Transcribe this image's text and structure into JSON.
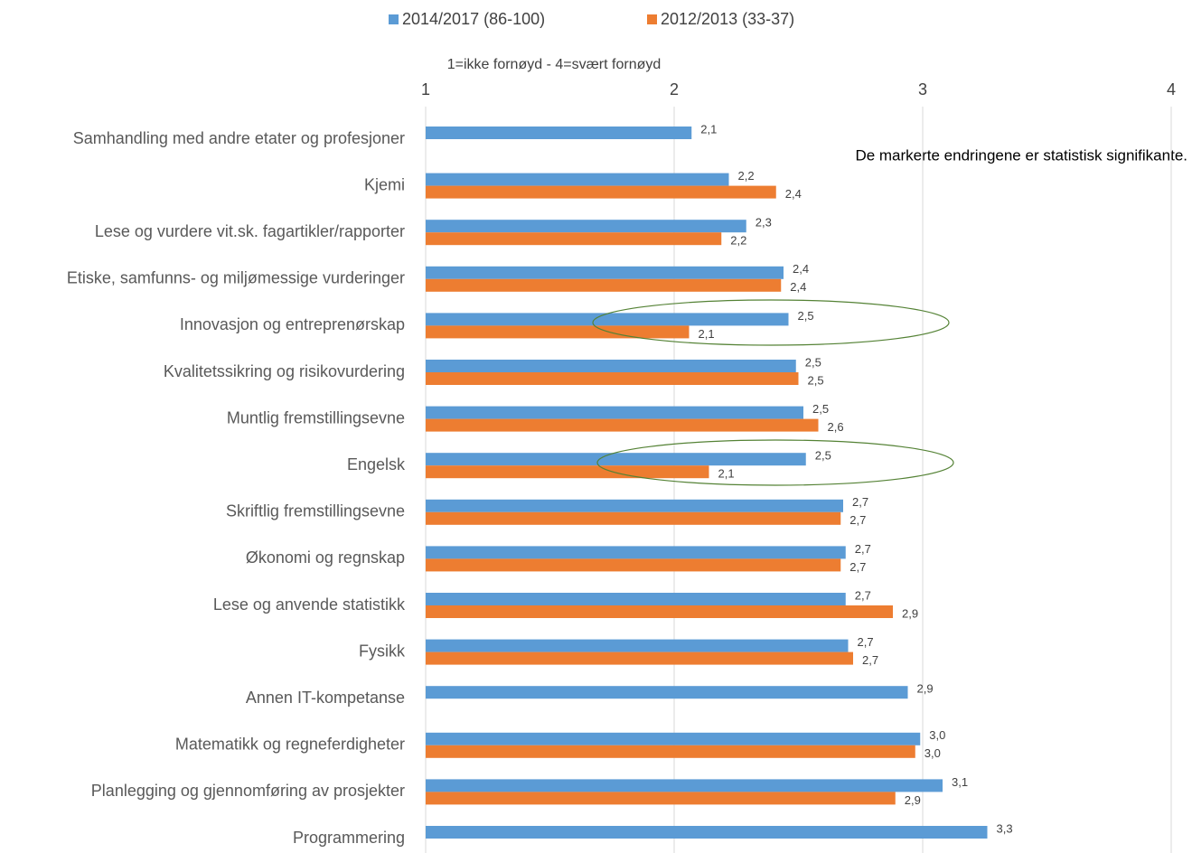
{
  "chart_data": {
    "type": "bar",
    "orientation": "horizontal",
    "axis_label": "1=ikke fornøyd - 4=svært fornøyd",
    "annotation": "De markerte endringene er statistisk signifikante.",
    "categories": [
      "Samhandling med andre etater og profesjoner",
      "Kjemi",
      "Lese og vurdere vit.sk. fagartikler/rapporter",
      "Etiske, samfunns- og miljømessige vurderinger",
      "Innovasjon og entreprenørskap",
      "Kvalitetssikring og risikovurdering",
      "Muntlig fremstillingsevne",
      "Engelsk",
      "Skriftlig fremstillingsevne",
      "Økonomi og regnskap",
      "Lese og anvende statistikk",
      "Fysikk",
      "Annen IT-kompetanse",
      "Matematikk og regneferdigheter",
      "Planlegging og gjennomføring av prosjekter",
      "Programmering"
    ],
    "series": [
      {
        "name": "2014/2017 (86-100)",
        "color": "#5b9bd5",
        "values": [
          2.07,
          2.22,
          2.29,
          2.44,
          2.46,
          2.49,
          2.52,
          2.53,
          2.68,
          2.69,
          2.69,
          2.7,
          2.94,
          2.99,
          3.08,
          3.26
        ],
        "value_labels": [
          "2,1",
          "2,2",
          "2,3",
          "2,4",
          "2,5",
          "2,5",
          "2,5",
          "2,5",
          "2,7",
          "2,7",
          "2,7",
          "2,7",
          "2,9",
          "3,0",
          "3,1",
          "3,3"
        ]
      },
      {
        "name": "2012/2013 (33-37)",
        "color": "#ed7d31",
        "values": [
          null,
          2.41,
          2.19,
          2.43,
          2.06,
          2.5,
          2.58,
          2.14,
          2.67,
          2.67,
          2.88,
          2.72,
          null,
          2.97,
          2.89,
          null
        ],
        "value_labels": [
          null,
          "2,4",
          "2,2",
          "2,4",
          "2,1",
          "2,5",
          "2,6",
          "2,1",
          "2,7",
          "2,7",
          "2,9",
          "2,7",
          null,
          "3,0",
          "2,9",
          null
        ]
      }
    ],
    "xlim": [
      1,
      4
    ],
    "xticks": [
      1,
      2,
      3,
      4
    ],
    "grid": true,
    "legend": "top"
  }
}
